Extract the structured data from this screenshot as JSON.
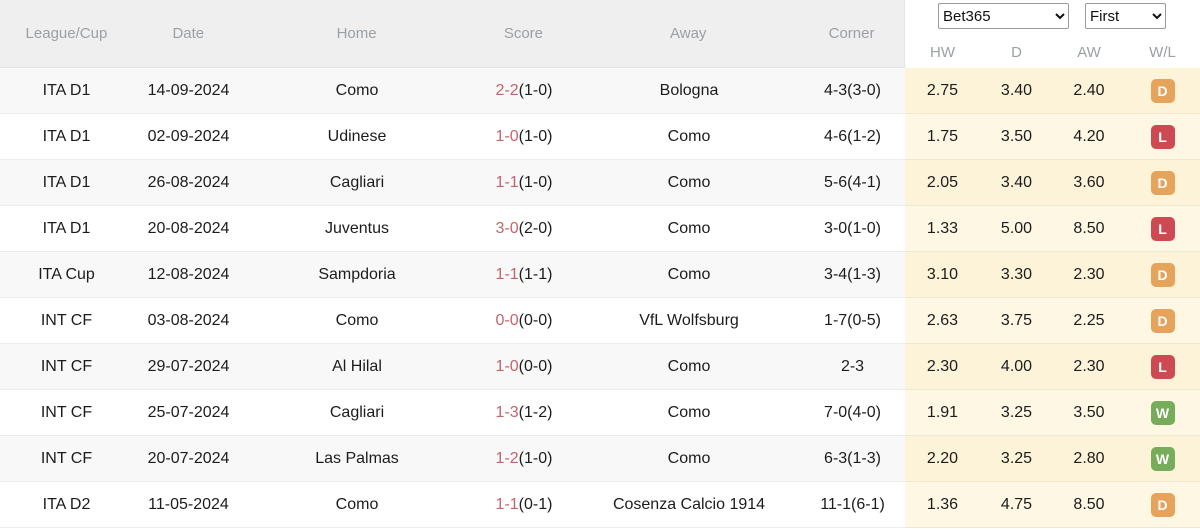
{
  "controls": {
    "bookmaker": {
      "selected": "Bet365",
      "options": [
        "Bet365"
      ]
    },
    "period": {
      "selected": "First",
      "options": [
        "First"
      ]
    }
  },
  "table": {
    "headers": {
      "league": "League/Cup",
      "date": "Date",
      "home": "Home",
      "score": "Score",
      "away": "Away",
      "corner": "Corner",
      "hw": "HW",
      "d": "D",
      "aw": "AW",
      "wl": "W/L"
    },
    "rows": [
      {
        "league": "ITA D1",
        "date": "14-09-2024",
        "home": "Como",
        "home_link": true,
        "score_main": "2-2",
        "score_half": "(1-0)",
        "away": "Bologna",
        "away_link": false,
        "corner": "4-3(3-0)",
        "hw": "2.75",
        "d": "3.40",
        "aw": "2.40",
        "wl": "D"
      },
      {
        "league": "ITA D1",
        "date": "02-09-2024",
        "home": "Udinese",
        "home_link": false,
        "score_main": "1-0",
        "score_half": "(1-0)",
        "away": "Como",
        "away_link": true,
        "corner": "4-6(1-2)",
        "hw": "1.75",
        "d": "3.50",
        "aw": "4.20",
        "wl": "L"
      },
      {
        "league": "ITA D1",
        "date": "26-08-2024",
        "home": "Cagliari",
        "home_link": false,
        "score_main": "1-1",
        "score_half": "(1-0)",
        "away": "Como",
        "away_link": true,
        "corner": "5-6(4-1)",
        "hw": "2.05",
        "d": "3.40",
        "aw": "3.60",
        "wl": "D"
      },
      {
        "league": "ITA D1",
        "date": "20-08-2024",
        "home": "Juventus",
        "home_link": false,
        "score_main": "3-0",
        "score_half": "(2-0)",
        "away": "Como",
        "away_link": true,
        "corner": "3-0(1-0)",
        "hw": "1.33",
        "d": "5.00",
        "aw": "8.50",
        "wl": "L"
      },
      {
        "league": "ITA Cup",
        "date": "12-08-2024",
        "home": "Sampdoria",
        "home_link": false,
        "score_main": "1-1",
        "score_half": "(1-1)",
        "away": "Como",
        "away_link": true,
        "corner": "3-4(1-3)",
        "hw": "3.10",
        "d": "3.30",
        "aw": "2.30",
        "wl": "D"
      },
      {
        "league": "INT CF",
        "date": "03-08-2024",
        "home": "Como",
        "home_link": true,
        "score_main": "0-0",
        "score_half": "(0-0)",
        "away": "VfL Wolfsburg",
        "away_link": false,
        "corner": "1-7(0-5)",
        "hw": "2.63",
        "d": "3.75",
        "aw": "2.25",
        "wl": "D"
      },
      {
        "league": "INT CF",
        "date": "29-07-2024",
        "home": "Al Hilal",
        "home_link": false,
        "score_main": "1-0",
        "score_half": "(0-0)",
        "away": "Como",
        "away_link": true,
        "corner": "2-3",
        "hw": "2.30",
        "d": "4.00",
        "aw": "2.30",
        "wl": "L"
      },
      {
        "league": "INT CF",
        "date": "25-07-2024",
        "home": "Cagliari",
        "home_link": false,
        "score_main": "1-3",
        "score_half": "(1-2)",
        "away": "Como",
        "away_link": true,
        "corner": "7-0(4-0)",
        "hw": "1.91",
        "d": "3.25",
        "aw": "3.50",
        "wl": "W"
      },
      {
        "league": "INT CF",
        "date": "20-07-2024",
        "home": "Las Palmas",
        "home_link": false,
        "score_main": "1-2",
        "score_half": "(1-0)",
        "away": "Como",
        "away_link": true,
        "corner": "6-3(1-3)",
        "hw": "2.20",
        "d": "3.25",
        "aw": "2.80",
        "wl": "W"
      },
      {
        "league": "ITA D2",
        "date": "11-05-2024",
        "home": "Como",
        "home_link": true,
        "score_main": "1-1",
        "score_half": "(0-1)",
        "away": "Cosenza Calcio 1914",
        "away_link": false,
        "corner": "11-1(6-1)",
        "hw": "1.36",
        "d": "4.75",
        "aw": "8.50",
        "wl": "D"
      }
    ]
  },
  "colors": {
    "win_badge": "#77ad5a",
    "draw_badge": "#e5a35c",
    "loss_badge": "#ce4a52",
    "team_link": "#68a5c8",
    "score_accent": "#c2646e",
    "odds_background": "#fdf7e3",
    "header_background": "#efeff0"
  }
}
